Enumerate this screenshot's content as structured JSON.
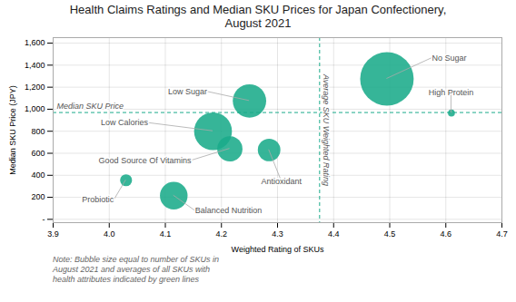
{
  "chart_data": {
    "type": "bubble",
    "title": "Health Claims Ratings and Median SKU Prices for Japan Confectionery,\nAugust 2021",
    "xlabel": "Weighted Rating of SKUs",
    "ylabel": "Median SKU Price (JPY)",
    "labels": [
      "No Sugar",
      "Low Sugar",
      "Low Calories",
      "Good Source Of Vitamins",
      "Antioxidant",
      "Probiotic",
      "Balanced Nutrition",
      "High Protein"
    ],
    "x": [
      4.495,
      4.25,
      4.185,
      4.215,
      4.285,
      4.03,
      4.115,
      4.61
    ],
    "values": [
      1275,
      1075,
      800,
      640,
      630,
      355,
      215,
      965
    ],
    "sizes": [
      1800,
      700,
      900,
      400,
      320,
      90,
      480,
      30
    ],
    "color": "#1aab8a",
    "reference_lines": [
      {
        "axis": "y",
        "value": 970,
        "label": "Median SKU Price",
        "color": "#1aab8a"
      },
      {
        "axis": "x",
        "value": 4.375,
        "label": "Average SKU Weighted Rating",
        "color": "#1aab8a"
      }
    ],
    "note": "Note: Bubble size equal to number of SKUs in\nAugust 2021 and averages of all SKUs with\nhealth attributes indicated by green lines",
    "xlim": [
      3.9,
      4.7
    ],
    "xticks": [
      3.9,
      {
        "value": 4.0,
        "label": "4.0"
      },
      4.1,
      4.2,
      4.3,
      4.4,
      4.5,
      4.6,
      4.7
    ],
    "ylim": [
      -30,
      1650
    ],
    "yticks": [
      {
        "value": 0,
        "label": "-"
      },
      200,
      400,
      600,
      800,
      {
        "value": 1000,
        "label": "1,000"
      },
      {
        "value": 1200,
        "label": "1,200"
      },
      {
        "value": 1400,
        "label": "1,400"
      },
      {
        "value": 1600,
        "label": "1,600"
      }
    ],
    "grid": true
  }
}
